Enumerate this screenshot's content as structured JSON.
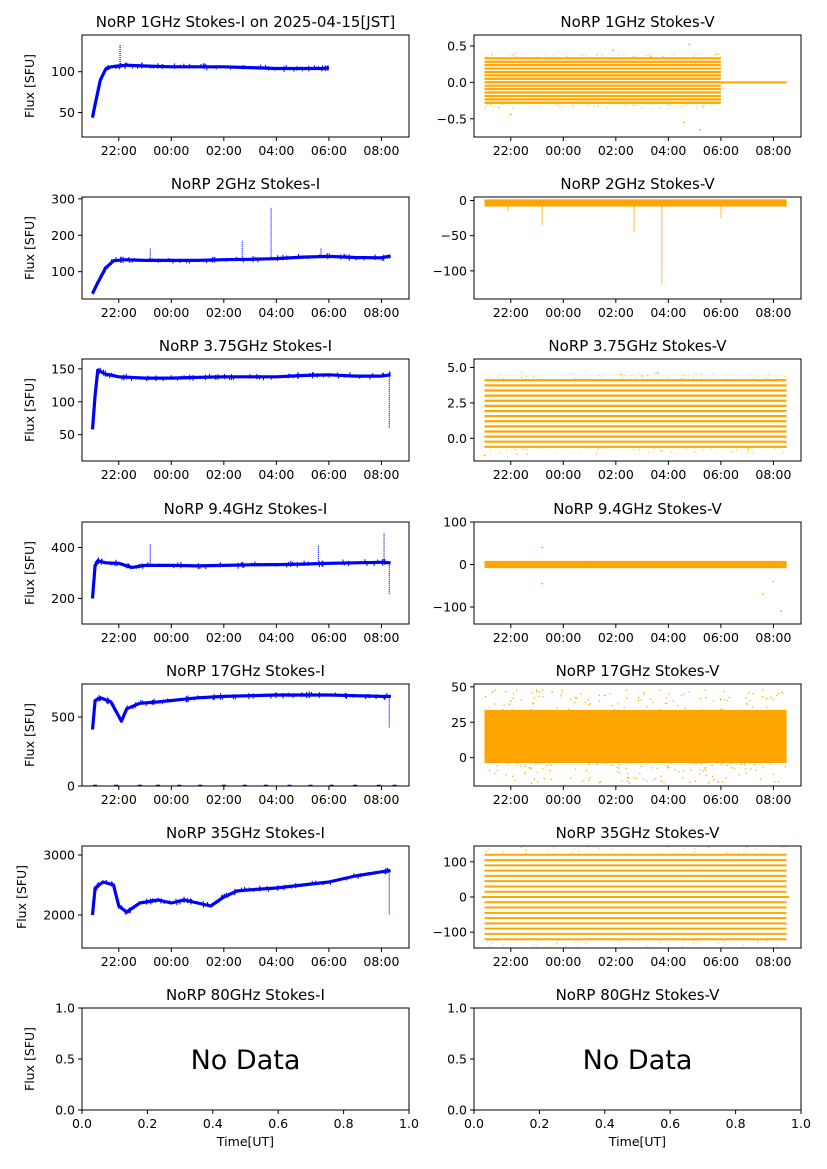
{
  "colors": {
    "stokes_i": "#0000ff",
    "stokes_v": "#ffa500"
  },
  "time_ticks": [
    "22:00",
    "00:00",
    "02:00",
    "04:00",
    "06:00",
    "08:00"
  ],
  "chart_data": [
    {
      "type": "scatter",
      "title": "NoRP 1GHz Stokes-I on 2025-04-15[JST]",
      "ylabel": "Flux [SFU]",
      "xlabel": "",
      "ylim": [
        20,
        145
      ],
      "yticks": [
        "50",
        "100"
      ],
      "ytick_values": [
        50,
        100
      ],
      "xlim": [
        20.6,
        33.05
      ],
      "data_range": [
        21.0,
        30.0
      ],
      "series": [
        {
          "values": [
            [
              21.0,
              44
            ],
            [
              21.1,
              60
            ],
            [
              21.3,
              90
            ],
            [
              21.5,
              103
            ],
            [
              21.7,
              106
            ],
            [
              22.0,
              107
            ],
            [
              22.3,
              108
            ],
            [
              23.0,
              107
            ],
            [
              24.0,
              106
            ],
            [
              25.0,
              106
            ],
            [
              26.0,
              106
            ],
            [
              27.0,
              105
            ],
            [
              28.0,
              104
            ],
            [
              29.0,
              104
            ],
            [
              29.8,
              104
            ],
            [
              30.0,
              105
            ]
          ]
        }
      ],
      "spikes": [
        [
          22.05,
          133
        ],
        [
          22.9,
          110
        ]
      ]
    },
    {
      "type": "scatter",
      "title": "NoRP 1GHz Stokes-V",
      "ylabel": "",
      "xlabel": "",
      "ylim": [
        -0.75,
        0.65
      ],
      "yticks": [
        "−0.5",
        "0.0",
        "0.5"
      ],
      "ytick_values": [
        -0.5,
        0,
        0.5
      ],
      "xlim": [
        20.6,
        33.05
      ],
      "band": {
        "start": 21.0,
        "end": 30.0,
        "low": -0.28,
        "high": 0.33
      },
      "tail": {
        "start": 30.0,
        "end": 32.5,
        "value": 0
      },
      "extremes": [
        [
          28.6,
          -0.55
        ],
        [
          29.2,
          -0.65
        ],
        [
          28.8,
          0.52
        ],
        [
          25.9,
          0.44
        ],
        [
          22.0,
          -0.44
        ]
      ]
    },
    {
      "type": "scatter",
      "title": "NoRP 2GHz Stokes-I",
      "ylabel": "Flux [SFU]",
      "xlabel": "",
      "ylim": [
        25,
        305
      ],
      "yticks": [
        "100",
        "200",
        "300"
      ],
      "ytick_values": [
        100,
        200,
        300
      ],
      "xlim": [
        20.6,
        33.05
      ],
      "data_range": [
        21.0,
        32.35
      ],
      "series": [
        {
          "values": [
            [
              21.0,
              40
            ],
            [
              21.2,
              70
            ],
            [
              21.5,
              110
            ],
            [
              21.8,
              130
            ],
            [
              22.2,
              133
            ],
            [
              23.0,
              131
            ],
            [
              24.0,
              131
            ],
            [
              25.0,
              131
            ],
            [
              26.0,
              133
            ],
            [
              27.0,
              134
            ],
            [
              28.0,
              136
            ],
            [
              29.0,
              140
            ],
            [
              30.0,
              142
            ],
            [
              31.0,
              139
            ],
            [
              32.0,
              138
            ],
            [
              32.35,
              143
            ]
          ]
        }
      ],
      "spikes": [
        [
          23.2,
          165
        ],
        [
          26.7,
          185
        ],
        [
          27.8,
          275
        ],
        [
          29.7,
          165
        ]
      ]
    },
    {
      "type": "scatter",
      "title": "NoRP 2GHz Stokes-V",
      "ylabel": "",
      "xlabel": "",
      "ylim": [
        -140,
        5
      ],
      "yticks": [
        "−100",
        "−50",
        "0"
      ],
      "ytick_values": [
        -100,
        -50,
        0
      ],
      "xlim": [
        20.6,
        33.05
      ],
      "band": {
        "start": 21.0,
        "end": 32.5,
        "low": -7,
        "high": 0
      },
      "tail": null,
      "dips": [
        [
          21.9,
          -15
        ],
        [
          23.2,
          -35
        ],
        [
          26.7,
          -45
        ],
        [
          27.75,
          -120
        ],
        [
          30.0,
          -25
        ]
      ]
    },
    {
      "type": "scatter",
      "title": "NoRP 3.75GHz Stokes-I",
      "ylabel": "Flux [SFU]",
      "xlabel": "",
      "ylim": [
        10,
        165
      ],
      "yticks": [
        "50",
        "100",
        "150"
      ],
      "ytick_values": [
        50,
        100,
        150
      ],
      "xlim": [
        20.6,
        33.05
      ],
      "data_range": [
        21.0,
        32.35
      ],
      "series": [
        {
          "values": [
            [
              21.0,
              58
            ],
            [
              21.1,
              110
            ],
            [
              21.2,
              148
            ],
            [
              21.5,
              142
            ],
            [
              22.0,
              138
            ],
            [
              23.0,
              136
            ],
            [
              24.0,
              136
            ],
            [
              25.0,
              137
            ],
            [
              26.0,
              138
            ],
            [
              27.0,
              138
            ],
            [
              28.0,
              138
            ],
            [
              29.0,
              140
            ],
            [
              30.0,
              141
            ],
            [
              31.0,
              139
            ],
            [
              32.0,
              139
            ],
            [
              32.35,
              141
            ]
          ]
        }
      ],
      "spikes": [
        [
          32.3,
          60
        ]
      ]
    },
    {
      "type": "scatter",
      "title": "NoRP 3.75GHz Stokes-V",
      "ylabel": "",
      "xlabel": "",
      "ylim": [
        -1.6,
        5.6
      ],
      "yticks": [
        "0.0",
        "2.5",
        "5.0"
      ],
      "ytick_values": [
        0,
        2.5,
        5
      ],
      "xlim": [
        20.6,
        33.05
      ],
      "band": {
        "start": 21.0,
        "end": 32.5,
        "low": -0.6,
        "high": 4.1
      },
      "tail": null,
      "extremes": [
        [
          21.0,
          -1.2
        ],
        [
          27.6,
          4.6
        ],
        [
          27.0,
          4.4
        ],
        [
          26.2,
          4.5
        ]
      ]
    },
    {
      "type": "scatter",
      "title": "NoRP 9.4GHz Stokes-I",
      "ylabel": "Flux [SFU]",
      "xlabel": "",
      "ylim": [
        100,
        500
      ],
      "yticks": [
        "200",
        "400"
      ],
      "ytick_values": [
        200,
        400
      ],
      "xlim": [
        20.6,
        33.05
      ],
      "data_range": [
        21.0,
        32.35
      ],
      "series": [
        {
          "values": [
            [
              21.0,
              200
            ],
            [
              21.1,
              330
            ],
            [
              21.2,
              348
            ],
            [
              21.5,
              340
            ],
            [
              22.0,
              338
            ],
            [
              22.5,
              322
            ],
            [
              23.0,
              330
            ],
            [
              24.0,
              330
            ],
            [
              25.0,
              328
            ],
            [
              26.0,
              330
            ],
            [
              27.0,
              332
            ],
            [
              28.0,
              333
            ],
            [
              29.0,
              335
            ],
            [
              30.0,
              338
            ],
            [
              31.0,
              340
            ],
            [
              32.0,
              342
            ],
            [
              32.35,
              340
            ]
          ]
        }
      ],
      "spikes": [
        [
          23.2,
          415
        ],
        [
          29.6,
          410
        ],
        [
          32.1,
          455
        ],
        [
          32.3,
          215
        ]
      ]
    },
    {
      "type": "scatter",
      "title": "NoRP 9.4GHz Stokes-V",
      "ylabel": "",
      "xlabel": "",
      "ylim": [
        -140,
        100
      ],
      "yticks": [
        "−100",
        "0",
        "100"
      ],
      "ytick_values": [
        -100,
        0,
        100
      ],
      "xlim": [
        20.6,
        33.05
      ],
      "band": {
        "start": 21.0,
        "end": 32.5,
        "low": -6,
        "high": 6
      },
      "tail": null,
      "extremes": [
        [
          23.2,
          -45
        ],
        [
          23.2,
          40
        ],
        [
          31.6,
          -70
        ],
        [
          32.3,
          -110
        ],
        [
          32.0,
          -40
        ]
      ]
    },
    {
      "type": "scatter",
      "title": "NoRP 17GHz Stokes-I",
      "ylabel": "Flux [SFU]",
      "xlabel": "",
      "ylim": [
        0,
        740
      ],
      "yticks": [
        "0",
        "500"
      ],
      "ytick_values": [
        0,
        500
      ],
      "xlim": [
        20.6,
        33.05
      ],
      "data_range": [
        21.0,
        32.35
      ],
      "series": [
        {
          "values": [
            [
              21.0,
              410
            ],
            [
              21.1,
              620
            ],
            [
              21.3,
              640
            ],
            [
              21.7,
              610
            ],
            [
              22.1,
              470
            ],
            [
              22.3,
              560
            ],
            [
              22.8,
              600
            ],
            [
              23.5,
              610
            ],
            [
              24.5,
              630
            ],
            [
              25.0,
              640
            ],
            [
              26.0,
              650
            ],
            [
              27.0,
              655
            ],
            [
              28.0,
              660
            ],
            [
              29.0,
              660
            ],
            [
              30.0,
              660
            ],
            [
              31.0,
              655
            ],
            [
              32.0,
              650
            ],
            [
              32.35,
              650
            ]
          ]
        }
      ],
      "spikes": [
        [
          32.3,
          420
        ]
      ],
      "zero_marks": [
        21.1,
        21.9,
        22.8,
        23.5,
        24.3,
        25.1,
        26.0,
        26.8,
        27.6,
        28.5,
        29.3,
        30.1,
        31.0,
        31.9,
        32.5
      ]
    },
    {
      "type": "scatter",
      "title": "NoRP 17GHz Stokes-V",
      "ylabel": "",
      "xlabel": "",
      "ylim": [
        -20,
        52
      ],
      "yticks": [
        "0",
        "25",
        "50"
      ],
      "ytick_values": [
        0,
        25,
        50
      ],
      "xlim": [
        20.6,
        33.05
      ],
      "band": {
        "start": 21.0,
        "end": 32.5,
        "low": -3,
        "high": 33
      },
      "tail": null,
      "extremes": [
        [
          22.0,
          40
        ],
        [
          24.5,
          42
        ],
        [
          28.0,
          -7
        ],
        [
          30.0,
          41
        ]
      ]
    },
    {
      "type": "scatter",
      "title": "NoRP 35GHz Stokes-I",
      "ylabel": "Flux [SFU]",
      "xlabel": "",
      "ylim": [
        1450,
        3150
      ],
      "yticks": [
        "2000",
        "3000"
      ],
      "ytick_values": [
        2000,
        3000
      ],
      "xlim": [
        20.6,
        33.05
      ],
      "data_range": [
        21.0,
        32.35
      ],
      "series": [
        {
          "values": [
            [
              21.0,
              2000
            ],
            [
              21.1,
              2450
            ],
            [
              21.4,
              2550
            ],
            [
              21.8,
              2500
            ],
            [
              22.0,
              2150
            ],
            [
              22.3,
              2050
            ],
            [
              22.8,
              2200
            ],
            [
              23.5,
              2250
            ],
            [
              24.0,
              2200
            ],
            [
              24.5,
              2250
            ],
            [
              25.0,
              2200
            ],
            [
              25.5,
              2150
            ],
            [
              26.0,
              2300
            ],
            [
              26.5,
              2400
            ],
            [
              27.0,
              2420
            ],
            [
              28.0,
              2450
            ],
            [
              29.0,
              2500
            ],
            [
              30.0,
              2550
            ],
            [
              31.0,
              2650
            ],
            [
              32.0,
              2720
            ],
            [
              32.35,
              2740
            ]
          ]
        }
      ],
      "spikes": [
        [
          32.3,
          2000
        ]
      ]
    },
    {
      "type": "scatter",
      "title": "NoRP 35GHz Stokes-V",
      "ylabel": "",
      "xlabel": "",
      "ylim": [
        -145,
        145
      ],
      "yticks": [
        "−100",
        "0",
        "100"
      ],
      "ytick_values": [
        -100,
        0,
        100
      ],
      "xlim": [
        20.6,
        33.05
      ],
      "band": {
        "start": 21.0,
        "end": 32.5,
        "low": -120,
        "high": 120,
        "lines": 17
      },
      "tail": {
        "start": 20.9,
        "end": 32.6,
        "value": 0
      },
      "extremes": []
    },
    {
      "type": "empty",
      "title": "NoRP 80GHz Stokes-I",
      "ylabel": "Flux [SFU]",
      "xlabel": "Time[UT]",
      "ylim": [
        0,
        1
      ],
      "xlim": [
        0,
        1
      ],
      "yticks": [
        "0.0",
        "0.5",
        "1.0"
      ],
      "ytick_values": [
        0,
        0.5,
        1
      ],
      "xticks": [
        "0.0",
        "0.2",
        "0.4",
        "0.6",
        "0.8",
        "1.0"
      ],
      "xtick_values": [
        0,
        0.2,
        0.4,
        0.6,
        0.8,
        1
      ],
      "annotation": "No Data"
    },
    {
      "type": "empty",
      "title": "NoRP 80GHz Stokes-V",
      "ylabel": "",
      "xlabel": "Time[UT]",
      "ylim": [
        0,
        1
      ],
      "xlim": [
        0,
        1
      ],
      "yticks": [
        "0.0",
        "0.5",
        "1.0"
      ],
      "ytick_values": [
        0,
        0.5,
        1
      ],
      "xticks": [
        "0.0",
        "0.2",
        "0.4",
        "0.6",
        "0.8",
        "1.0"
      ],
      "xtick_values": [
        0,
        0.2,
        0.4,
        0.6,
        0.8,
        1
      ],
      "annotation": "No Data"
    }
  ]
}
